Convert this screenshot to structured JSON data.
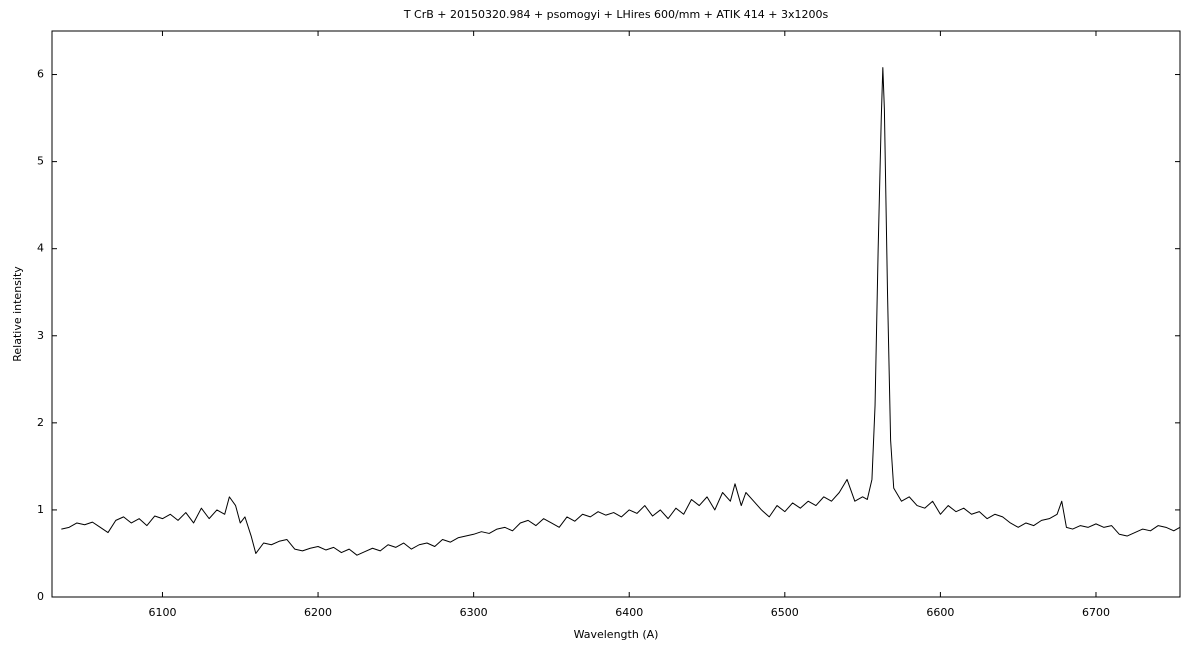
{
  "chart_data": {
    "type": "line",
    "title": "T CrB + 20150320.984 + psomogyi + LHires 600/mm + ATIK 414 + 3x1200s",
    "xlabel": "Wavelength (A)",
    "ylabel": "Relative intensity",
    "color": "#000000",
    "xlim": [
      6029,
      6754
    ],
    "ylim": [
      0,
      6.5
    ],
    "xticks": [
      6100,
      6200,
      6300,
      6400,
      6500,
      6600,
      6700
    ],
    "yticks": [
      0,
      1,
      2,
      3,
      4,
      5,
      6
    ],
    "x": [
      6035,
      6040,
      6045,
      6050,
      6055,
      6060,
      6065,
      6070,
      6075,
      6080,
      6085,
      6090,
      6095,
      6100,
      6105,
      6110,
      6115,
      6120,
      6125,
      6130,
      6135,
      6140,
      6143,
      6147,
      6150,
      6153,
      6157,
      6160,
      6165,
      6170,
      6175,
      6180,
      6185,
      6190,
      6195,
      6200,
      6205,
      6210,
      6215,
      6220,
      6225,
      6230,
      6235,
      6240,
      6245,
      6250,
      6255,
      6260,
      6265,
      6270,
      6275,
      6280,
      6285,
      6290,
      6295,
      6300,
      6305,
      6310,
      6315,
      6320,
      6325,
      6330,
      6335,
      6340,
      6345,
      6350,
      6355,
      6360,
      6365,
      6370,
      6375,
      6380,
      6385,
      6390,
      6395,
      6400,
      6405,
      6410,
      6415,
      6420,
      6425,
      6430,
      6435,
      6440,
      6445,
      6450,
      6455,
      6460,
      6465,
      6468,
      6472,
      6475,
      6480,
      6485,
      6490,
      6495,
      6500,
      6505,
      6510,
      6515,
      6520,
      6525,
      6530,
      6535,
      6540,
      6545,
      6550,
      6553,
      6556,
      6558,
      6560,
      6562,
      6563,
      6564,
      6566,
      6568,
      6570,
      6575,
      6580,
      6585,
      6590,
      6595,
      6600,
      6605,
      6610,
      6615,
      6620,
      6625,
      6630,
      6635,
      6640,
      6645,
      6650,
      6655,
      6660,
      6665,
      6670,
      6675,
      6678,
      6681,
      6685,
      6690,
      6695,
      6700,
      6705,
      6710,
      6715,
      6720,
      6725,
      6730,
      6735,
      6740,
      6745,
      6750,
      6754
    ],
    "values": [
      0.78,
      0.8,
      0.85,
      0.83,
      0.86,
      0.8,
      0.74,
      0.88,
      0.92,
      0.85,
      0.9,
      0.82,
      0.93,
      0.9,
      0.95,
      0.88,
      0.97,
      0.85,
      1.02,
      0.9,
      1.0,
      0.95,
      1.15,
      1.05,
      0.85,
      0.92,
      0.7,
      0.5,
      0.62,
      0.6,
      0.64,
      0.66,
      0.55,
      0.53,
      0.56,
      0.58,
      0.54,
      0.57,
      0.51,
      0.55,
      0.48,
      0.52,
      0.56,
      0.53,
      0.6,
      0.57,
      0.62,
      0.55,
      0.6,
      0.62,
      0.58,
      0.66,
      0.63,
      0.68,
      0.7,
      0.72,
      0.75,
      0.73,
      0.78,
      0.8,
      0.76,
      0.85,
      0.88,
      0.82,
      0.9,
      0.85,
      0.8,
      0.92,
      0.87,
      0.95,
      0.92,
      0.98,
      0.94,
      0.97,
      0.92,
      1.0,
      0.96,
      1.05,
      0.93,
      1.0,
      0.9,
      1.02,
      0.95,
      1.12,
      1.05,
      1.15,
      1.0,
      1.2,
      1.1,
      1.3,
      1.05,
      1.2,
      1.1,
      1.0,
      0.92,
      1.05,
      0.98,
      1.08,
      1.02,
      1.1,
      1.05,
      1.15,
      1.1,
      1.2,
      1.35,
      1.1,
      1.15,
      1.12,
      1.35,
      2.2,
      4.0,
      5.5,
      6.08,
      5.6,
      3.5,
      1.8,
      1.25,
      1.1,
      1.15,
      1.05,
      1.02,
      1.1,
      0.95,
      1.05,
      0.98,
      1.02,
      0.95,
      0.98,
      0.9,
      0.95,
      0.92,
      0.85,
      0.8,
      0.85,
      0.82,
      0.88,
      0.9,
      0.95,
      1.1,
      0.8,
      0.78,
      0.82,
      0.8,
      0.84,
      0.8,
      0.82,
      0.72,
      0.7,
      0.74,
      0.78,
      0.76,
      0.82,
      0.8,
      0.76,
      0.8
    ]
  }
}
